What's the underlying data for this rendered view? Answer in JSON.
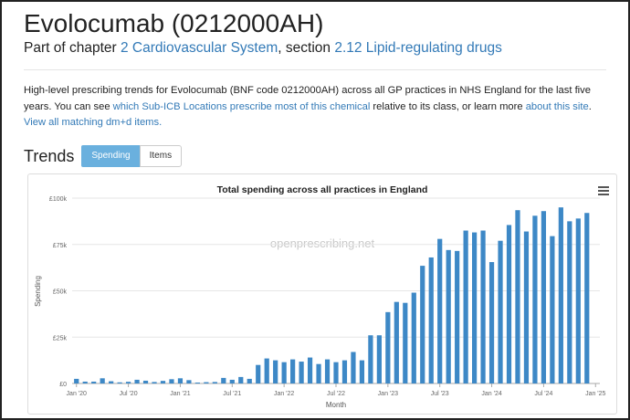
{
  "header": {
    "title": "Evolocumab (0212000AH)",
    "part_of": "Part of chapter",
    "chapter_link": "2 Cardiovascular System",
    "section_sep": ", section",
    "section_link": "2.12 Lipid-regulating drugs"
  },
  "description": {
    "text1": "High-level prescribing trends for Evolocumab (BNF code 0212000AH) across all GP practices in NHS England for the last five years. You can see ",
    "link1": "which Sub-ICB Locations prescribe most of this chemical",
    "text2": " relative to its class, or learn more ",
    "link2": "about this site",
    "text3": "."
  },
  "view_all_link": "View all matching dm+d items.",
  "trends": {
    "heading": "Trends",
    "tab_spending": "Spending",
    "tab_items": "Items"
  },
  "colors": {
    "bar": "#3d88c6",
    "link": "#337ab7",
    "active_tab": "#6ab0de"
  },
  "chart_data": {
    "type": "bar",
    "title": "Total spending across all practices in England",
    "watermark": "openprescribing.net",
    "xlabel": "Month",
    "ylabel": "Spending",
    "ylim": [
      0,
      100000
    ],
    "y_ticks": [
      0,
      25000,
      50000,
      75000,
      100000
    ],
    "y_tick_labels": [
      "£0",
      "£25k",
      "£50k",
      "£75k",
      "£100k"
    ],
    "x_tick_labels": [
      "Jan '20",
      "Jul '20",
      "Jan '21",
      "Jul '21",
      "Jan '22",
      "Jul '22",
      "Jan '23",
      "Jul '23",
      "Jan '24",
      "Jul '24",
      "Jan '25"
    ],
    "x_tick_indices": [
      0,
      6,
      12,
      18,
      24,
      30,
      36,
      42,
      48,
      54,
      60
    ],
    "categories": [
      "Jan 2020",
      "Feb 2020",
      "Mar 2020",
      "Apr 2020",
      "May 2020",
      "Jun 2020",
      "Jul 2020",
      "Aug 2020",
      "Sep 2020",
      "Oct 2020",
      "Nov 2020",
      "Dec 2020",
      "Jan 2021",
      "Feb 2021",
      "Mar 2021",
      "Apr 2021",
      "May 2021",
      "Jun 2021",
      "Jul 2021",
      "Aug 2021",
      "Sep 2021",
      "Oct 2021",
      "Nov 2021",
      "Dec 2021",
      "Jan 2022",
      "Feb 2022",
      "Mar 2022",
      "Apr 2022",
      "May 2022",
      "Jun 2022",
      "Jul 2022",
      "Aug 2022",
      "Sep 2022",
      "Oct 2022",
      "Nov 2022",
      "Dec 2022",
      "Jan 2023",
      "Feb 2023",
      "Mar 2023",
      "Apr 2023",
      "May 2023",
      "Jun 2023",
      "Jul 2023",
      "Aug 2023",
      "Sep 2023",
      "Oct 2023",
      "Nov 2023",
      "Dec 2023",
      "Jan 2024",
      "Feb 2024",
      "Mar 2024",
      "Apr 2024",
      "May 2024",
      "Jun 2024",
      "Jul 2024",
      "Aug 2024",
      "Sep 2024",
      "Oct 2024",
      "Nov 2024",
      "Dec 2024",
      "Jan 2025"
    ],
    "values": [
      2500,
      1000,
      1000,
      2800,
      1200,
      600,
      900,
      2000,
      1500,
      800,
      1400,
      2300,
      2800,
      1800,
      500,
      700,
      800,
      3000,
      2000,
      3500,
      2500,
      10000,
      13500,
      12500,
      11500,
      13000,
      11800,
      14000,
      10500,
      13000,
      11500,
      12500,
      17000,
      12500,
      26000,
      26000,
      38500,
      44000,
      43500,
      49000,
      63500,
      68000,
      78000,
      72000,
      71500,
      82500,
      81500,
      82500,
      65500,
      77000,
      85500,
      93500,
      82000,
      90500,
      93000,
      79500,
      95000,
      87500,
      89000,
      92000,
      0
    ]
  },
  "menu_icon": "hamburger-menu-icon"
}
